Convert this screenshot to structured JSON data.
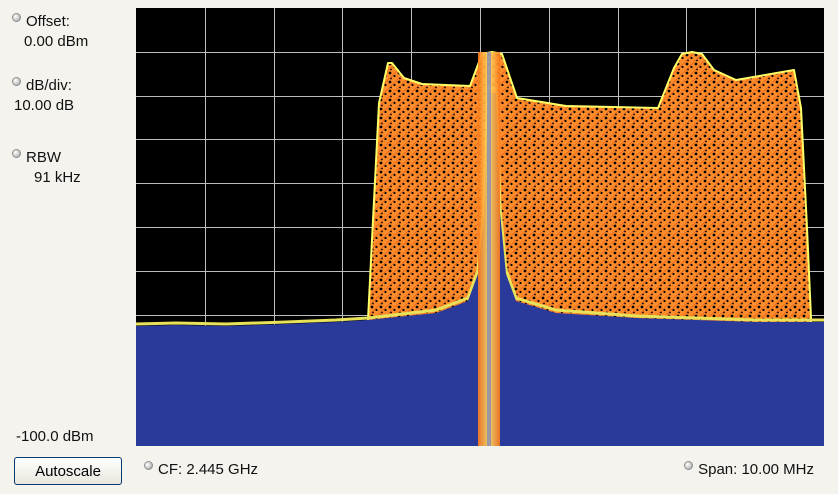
{
  "controls": {
    "offset": {
      "label": "Offset:",
      "value": "0.00 dBm"
    },
    "db_per_div": {
      "label": "dB/div:",
      "value": "10.00 dB"
    },
    "rbw": {
      "label": "RBW",
      "value": "91 kHz"
    },
    "bottom_reference": "-100.0 dBm"
  },
  "autoscale_label": "Autoscale",
  "center_frequency": "CF: 2.445 GHz",
  "span": "Span: 10.00 MHz",
  "display": {
    "trace_colors": {
      "background": "#000000",
      "noise_fill": "#2a3a9a",
      "trace_dense": "#ff8c2a",
      "trace_edge": "#ffff66",
      "grid": "#bdbdbd"
    },
    "grid_divisions": {
      "x": 10,
      "y": 10
    }
  }
}
